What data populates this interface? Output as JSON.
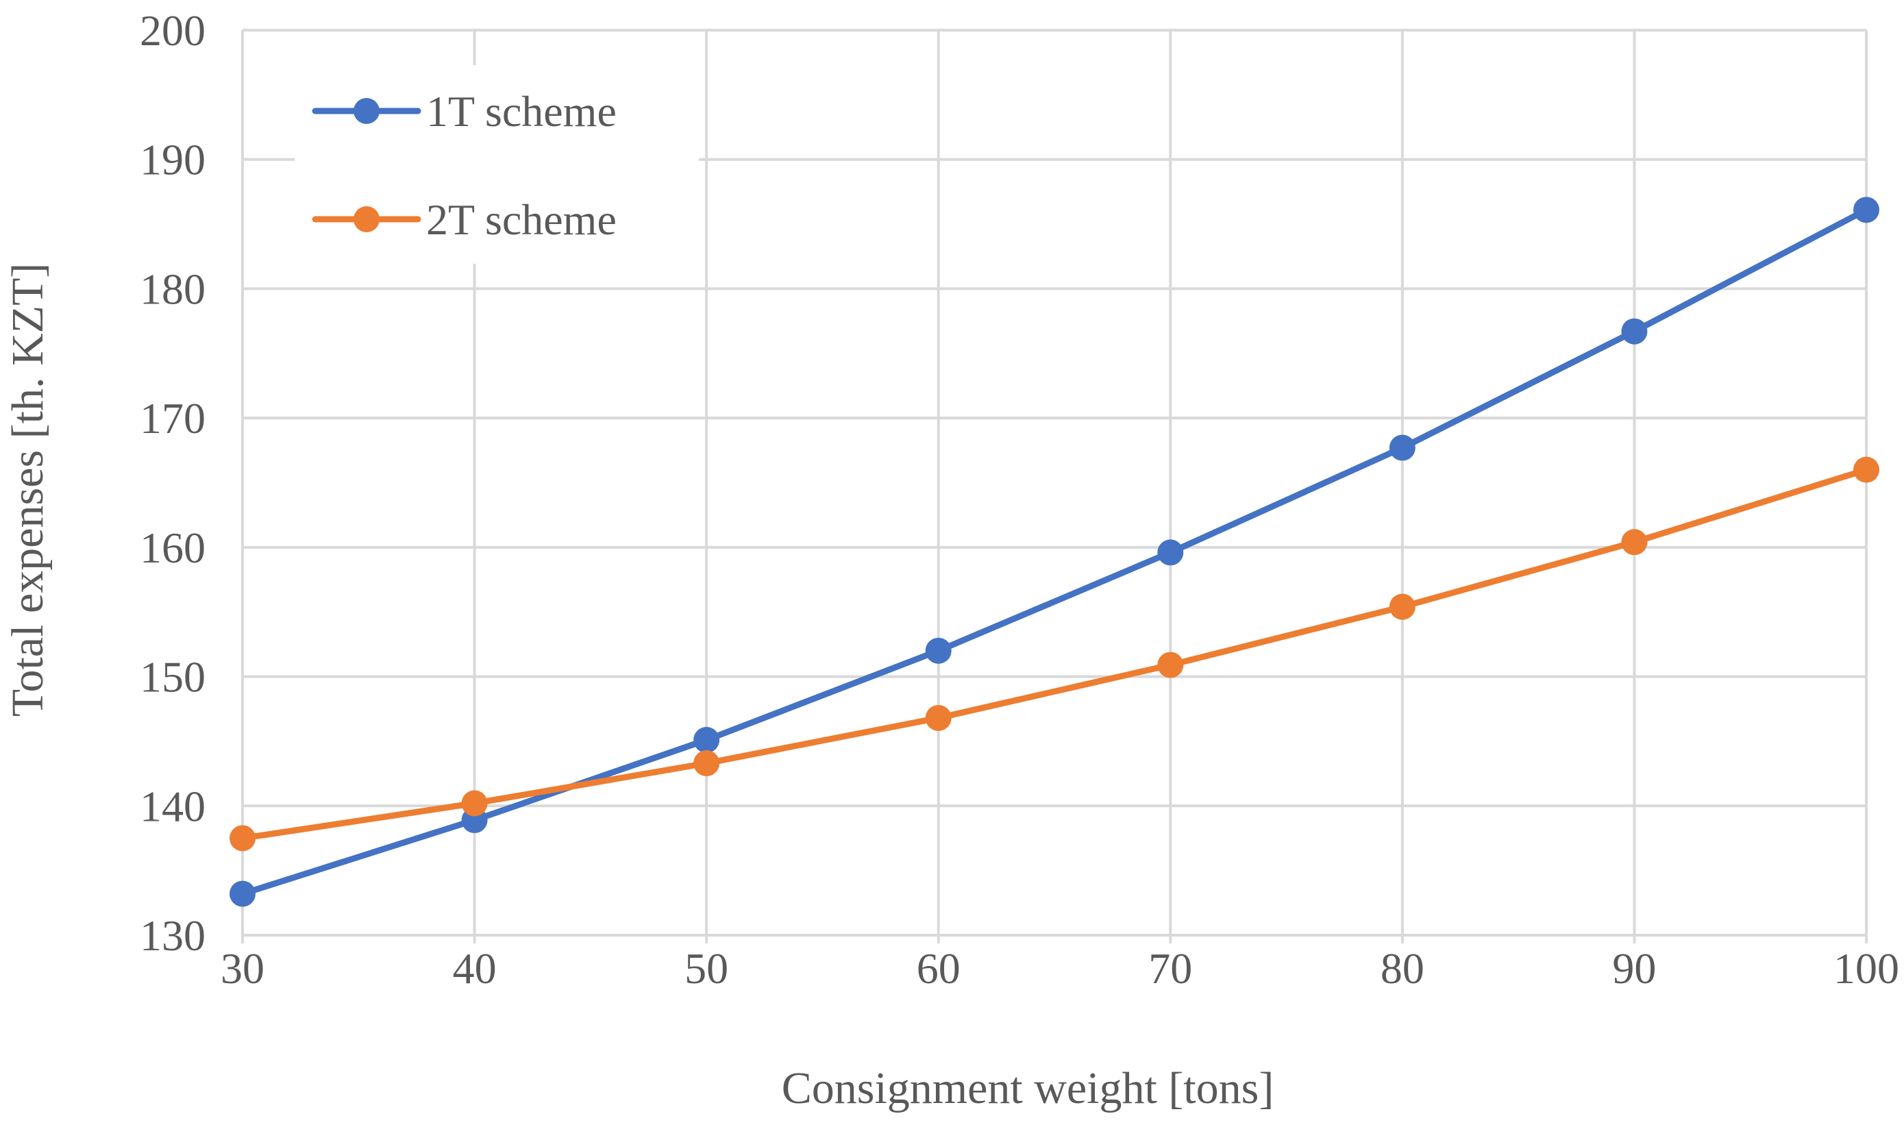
{
  "chart_data": {
    "type": "line",
    "title": "",
    "xlabel": "Consignment weight [tons]",
    "ylabel": "Total expenses [th. KZT]",
    "x": [
      30,
      40,
      50,
      60,
      70,
      80,
      90,
      100
    ],
    "x_tick_labels": [
      "30",
      "40",
      "50",
      "60",
      "70",
      "80",
      "90",
      "100"
    ],
    "y_tick_labels": [
      "130",
      "140",
      "150",
      "160",
      "170",
      "180",
      "190",
      "200"
    ],
    "xlim": [
      30,
      100
    ],
    "ylim": [
      130,
      200
    ],
    "grid": true,
    "legend_position": "top-left",
    "series": [
      {
        "name": "1T scheme",
        "color": "#4472c4",
        "values": [
          133.2,
          138.9,
          145.1,
          152.0,
          159.6,
          167.7,
          176.7,
          186.1
        ]
      },
      {
        "name": "2T scheme",
        "color": "#ed7d31",
        "values": [
          137.5,
          140.2,
          143.3,
          146.8,
          150.9,
          155.4,
          160.4,
          166.0
        ]
      }
    ]
  }
}
